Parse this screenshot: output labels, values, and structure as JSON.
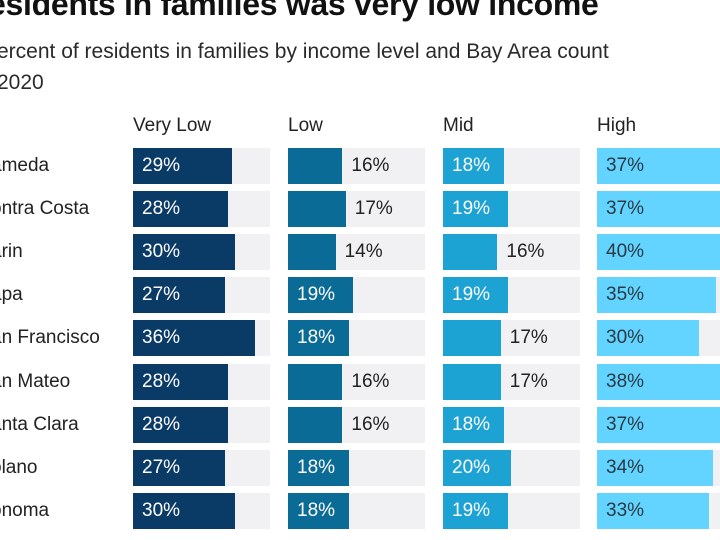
{
  "header": {
    "title": "esidents in families was very low income",
    "subtitle_line1": "ercent of residents in families by income level and Bay Area count",
    "subtitle_line2": "2020"
  },
  "colors": {
    "very_low": "#0a3a66",
    "low": "#0a6b96",
    "mid": "#1da2d4",
    "high": "#62d4ff",
    "track": "#f1f1f4",
    "label_light": "#ffffff",
    "label_dark": "#222222"
  },
  "chart_data": {
    "type": "bar",
    "orientation": "horizontal",
    "layout": "small-multiples",
    "title": "esidents in families was very low income",
    "subtitle": "ercent of residents in families by income level and Bay Area count 2020",
    "categories": [
      "ameda",
      "ontra Costa",
      "arin",
      "apa",
      "an Francisco",
      "an Mateo",
      "anta Clara",
      "olano",
      "onoma"
    ],
    "xlim": [
      0,
      40
    ],
    "unit": "%",
    "series": [
      {
        "name": "Very Low",
        "key": "very_low",
        "values": [
          29,
          28,
          30,
          27,
          36,
          28,
          28,
          27,
          30
        ]
      },
      {
        "name": "Low",
        "key": "low",
        "values": [
          16,
          17,
          14,
          19,
          18,
          16,
          16,
          18,
          18
        ]
      },
      {
        "name": "Mid",
        "key": "mid",
        "values": [
          18,
          19,
          16,
          19,
          17,
          17,
          18,
          20,
          19
        ]
      },
      {
        "name": "High",
        "key": "high",
        "values": [
          37,
          37,
          40,
          35,
          30,
          38,
          37,
          34,
          33
        ]
      }
    ],
    "legend": "none",
    "grid": false
  }
}
